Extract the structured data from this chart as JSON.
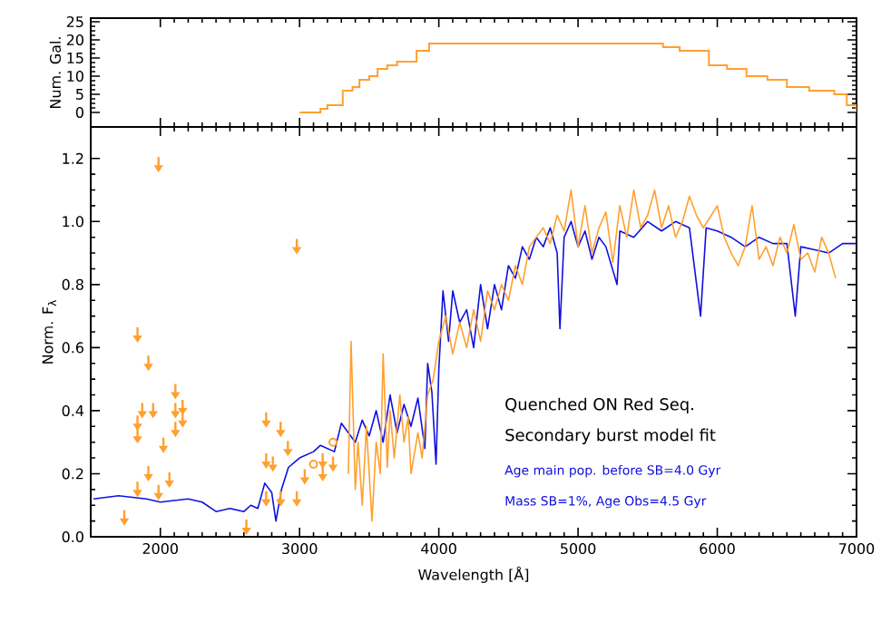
{
  "chart_data": [
    {
      "type": "step",
      "ylabel": "Num. Gal.",
      "x": [
        3000,
        3150,
        3200,
        3310,
        3380,
        3430,
        3500,
        3560,
        3630,
        3700,
        3840,
        3930,
        5610,
        5730,
        5940,
        6070,
        6210,
        6360,
        6500,
        6660,
        6840,
        6930,
        7000
      ],
      "series": [
        {
          "color": "#ffa030",
          "values": [
            0,
            1,
            2,
            6,
            7,
            9,
            10,
            12,
            13,
            14,
            17,
            19,
            18,
            17,
            13,
            12,
            10,
            9,
            7,
            6,
            5,
            2,
            0
          ]
        }
      ],
      "xlim": [
        1500,
        7000
      ],
      "xticks": [
        2000,
        3000,
        4000,
        5000,
        6000,
        7000
      ],
      "ylim": [
        -4,
        26
      ],
      "yticks": [
        0,
        5,
        10,
        15,
        20,
        25
      ],
      "tick_labels": "y"
    },
    {
      "type": "line",
      "xlabel": "Wavelength [Å]",
      "ylabel": "Norm. F$_{λ}$",
      "series": [
        {
          "type": "line",
          "color": "#1010e0",
          "x": [
            1520,
            1700,
            1900,
            2000,
            2200,
            2300,
            2400,
            2500,
            2600,
            2650,
            2700,
            2750,
            2800,
            2830,
            2870,
            2920,
            3000,
            3100,
            3150,
            3200,
            3250,
            3300,
            3350,
            3400,
            3450,
            3500,
            3550,
            3600,
            3650,
            3700,
            3750,
            3800,
            3850,
            3900,
            3920,
            3950,
            3980,
            4000,
            4030,
            4070,
            4100,
            4150,
            4200,
            4250,
            4300,
            4350,
            4400,
            4450,
            4500,
            4550,
            4600,
            4650,
            4700,
            4750,
            4800,
            4850,
            4870,
            4900,
            4950,
            5000,
            5050,
            5100,
            5150,
            5200,
            5280,
            5300,
            5400,
            5500,
            5600,
            5700,
            5800,
            5880,
            5920,
            6000,
            6100,
            6200,
            6300,
            6400,
            6500,
            6560,
            6600,
            6700,
            6800,
            6900,
            7000
          ],
          "values": [
            0.12,
            0.13,
            0.12,
            0.11,
            0.12,
            0.11,
            0.08,
            0.09,
            0.08,
            0.1,
            0.09,
            0.17,
            0.14,
            0.05,
            0.15,
            0.22,
            0.25,
            0.27,
            0.29,
            0.28,
            0.27,
            0.36,
            0.33,
            0.3,
            0.37,
            0.32,
            0.4,
            0.3,
            0.45,
            0.33,
            0.42,
            0.35,
            0.44,
            0.28,
            0.55,
            0.46,
            0.23,
            0.53,
            0.78,
            0.62,
            0.78,
            0.68,
            0.72,
            0.6,
            0.8,
            0.66,
            0.8,
            0.72,
            0.86,
            0.82,
            0.92,
            0.88,
            0.95,
            0.92,
            0.98,
            0.9,
            0.66,
            0.95,
            1.0,
            0.92,
            0.97,
            0.88,
            0.95,
            0.92,
            0.8,
            0.97,
            0.95,
            1.0,
            0.97,
            1.0,
            0.98,
            0.7,
            0.98,
            0.97,
            0.95,
            0.92,
            0.95,
            0.93,
            0.93,
            0.7,
            0.92,
            0.91,
            0.9,
            0.93,
            0.93
          ]
        },
        {
          "type": "line",
          "color": "#ffa030",
          "x": [
            3350,
            3370,
            3400,
            3420,
            3450,
            3480,
            3520,
            3550,
            3580,
            3600,
            3630,
            3650,
            3680,
            3720,
            3750,
            3780,
            3800,
            3850,
            3880,
            3920,
            3960,
            4000,
            4050,
            4100,
            4150,
            4200,
            4250,
            4300,
            4350,
            4400,
            4450,
            4500,
            4550,
            4600,
            4650,
            4700,
            4750,
            4800,
            4850,
            4900,
            4950,
            5000,
            5050,
            5100,
            5150,
            5200,
            5250,
            5300,
            5350,
            5400,
            5450,
            5500,
            5550,
            5600,
            5650,
            5700,
            5750,
            5800,
            5850,
            5900,
            6000,
            6050,
            6100,
            6150,
            6200,
            6250,
            6300,
            6350,
            6400,
            6450,
            6500,
            6550,
            6600,
            6650,
            6700,
            6750,
            6800,
            6850
          ],
          "values": [
            0.2,
            0.62,
            0.15,
            0.3,
            0.1,
            0.35,
            0.05,
            0.3,
            0.2,
            0.58,
            0.22,
            0.4,
            0.25,
            0.45,
            0.3,
            0.38,
            0.2,
            0.33,
            0.25,
            0.45,
            0.5,
            0.62,
            0.7,
            0.58,
            0.68,
            0.6,
            0.72,
            0.62,
            0.78,
            0.72,
            0.8,
            0.75,
            0.86,
            0.8,
            0.92,
            0.95,
            0.98,
            0.93,
            1.02,
            0.97,
            1.1,
            0.92,
            1.05,
            0.9,
            0.98,
            1.03,
            0.87,
            1.05,
            0.95,
            1.1,
            0.98,
            1.02,
            1.1,
            0.98,
            1.05,
            0.95,
            1.0,
            1.08,
            1.02,
            0.98,
            1.05,
            0.95,
            0.9,
            0.86,
            0.92,
            1.05,
            0.88,
            0.92,
            0.86,
            0.95,
            0.9,
            0.99,
            0.88,
            0.9,
            0.84,
            0.95,
            0.9,
            0.82
          ]
        },
        {
          "type": "scatter",
          "color": "#ffa030",
          "x": [
            1987,
            2980,
            1836,
            1836,
            1836,
            1870,
            1914,
            1948,
            2022,
            1741,
            1836,
            1914,
            1987,
            2065,
            2108,
            2108,
            2108,
            2160,
            2160,
            2618,
            2760,
            2760,
            2808,
            2760,
            2864,
            2916,
            2864,
            2980,
            3037,
            3166,
            3166,
            3240
          ],
          "values": [
            1.18,
            0.92,
            0.64,
            0.36,
            0.32,
            0.4,
            0.55,
            0.4,
            0.29,
            0.06,
            0.15,
            0.2,
            0.14,
            0.18,
            0.46,
            0.4,
            0.34,
            0.41,
            0.37,
            0.03,
            0.37,
            0.24,
            0.23,
            0.12,
            0.34,
            0.28,
            0.12,
            0.12,
            0.19,
            0.24,
            0.2,
            0.23
          ]
        },
        {
          "type": "scatter",
          "color": "#ffa030",
          "marker": "circle",
          "x": [
            3100,
            3240
          ],
          "values": [
            0.23,
            0.3
          ]
        }
      ],
      "annotations": [
        "Quenched ON Red Seq.",
        "Secondary burst model fit",
        "Age main pop. before SB=4.0 Gyr",
        "Mass SB=1%, Age Obs=4.5 Gyr"
      ],
      "xlim": [
        1500,
        7000
      ],
      "xticks": [
        2000,
        3000,
        4000,
        5000,
        6000,
        7000
      ],
      "ylim": [
        0,
        1.3
      ],
      "yticks": [
        {
          "value": 0,
          "label": "0.0"
        },
        {
          "value": 0.2,
          "label": "0.2"
        },
        {
          "value": 0.4,
          "label": "0.4"
        },
        {
          "value": 0.6,
          "label": "0.6"
        },
        {
          "value": 0.8,
          "label": "0.8"
        },
        {
          "value": 1.0,
          "label": "1.0"
        },
        {
          "value": 1.2,
          "label": "1.2"
        }
      ]
    }
  ]
}
